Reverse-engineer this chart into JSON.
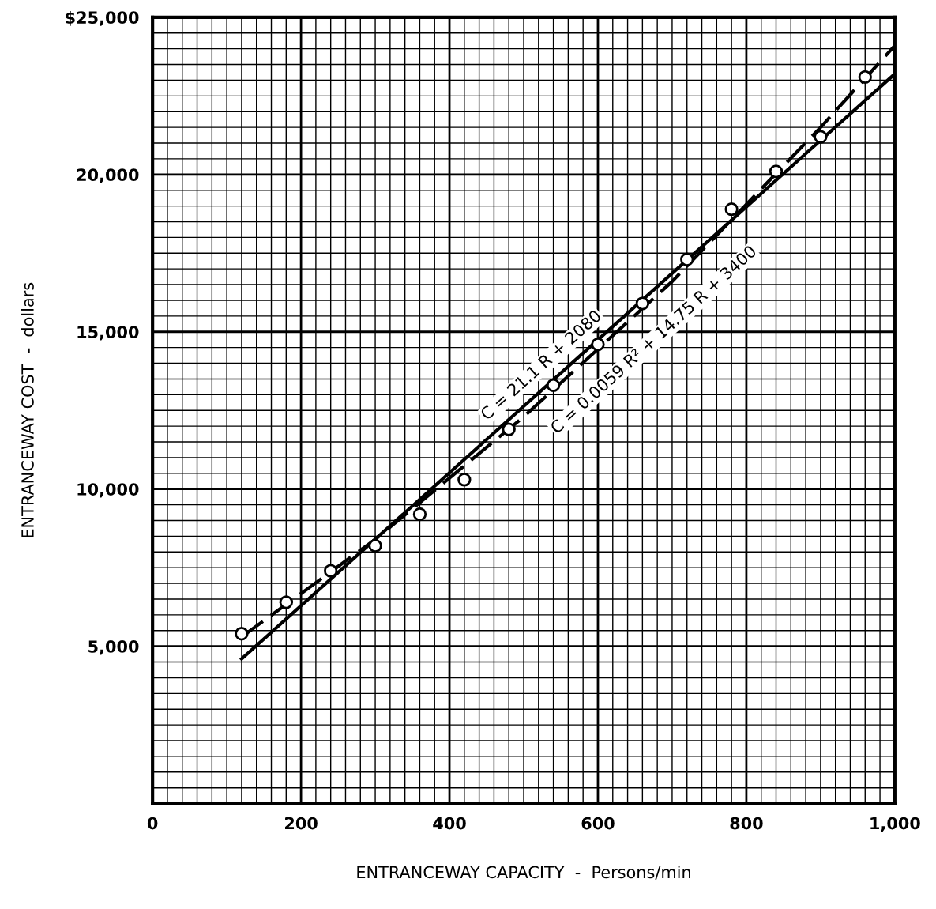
{
  "chart_data": {
    "type": "scatter",
    "xlabel": "ENTRANCEWAY CAPACITY  -  Persons/min",
    "ylabel": "ENTRANCEWAY COST  -  dollars",
    "series": [
      {
        "color": "#000000",
        "marker": "circle",
        "x": [
          120,
          180,
          240,
          300,
          360,
          420,
          480,
          540,
          600,
          660,
          720,
          780,
          840,
          900,
          960
        ],
        "values": [
          5400,
          6400,
          7400,
          8200,
          9200,
          10300,
          11900,
          13300,
          14600,
          15900,
          17300,
          18900,
          20100,
          21200,
          23100
        ]
      },
      {
        "type": "line",
        "color": "#000000",
        "line_style": "solid",
        "x": [
          120,
          1000
        ],
        "values": [
          4600,
          23200
        ]
      },
      {
        "type": "line",
        "color": "#000000",
        "line_style": "dashed",
        "x": [
          120,
          300,
          500,
          700,
          900,
          1000
        ],
        "values": [
          5300,
          8400,
          12300,
          16600,
          21500,
          24100
        ]
      }
    ],
    "annotations": [
      {
        "text": "C = 21.1 R + 2080",
        "x": 540,
        "y": 13500
      },
      {
        "text": "C = 0.0059 R² + 14.75 R + 3400",
        "x": 650,
        "y": 15400
      }
    ],
    "xlim": [
      0,
      1000
    ],
    "ylim": [
      0,
      25000
    ],
    "xticks": [
      {
        "value": 0,
        "label": "0"
      },
      {
        "value": 20,
        "label": null
      },
      {
        "value": 40,
        "label": null
      },
      {
        "value": 60,
        "label": null
      },
      {
        "value": 80,
        "label": null
      },
      {
        "value": 100,
        "label": null
      },
      {
        "value": 120,
        "label": null
      },
      {
        "value": 140,
        "label": null
      },
      {
        "value": 160,
        "label": null
      },
      {
        "value": 180,
        "label": null
      },
      {
        "value": 200,
        "label": "200"
      },
      {
        "value": 220,
        "label": null
      },
      {
        "value": 240,
        "label": null
      },
      {
        "value": 260,
        "label": null
      },
      {
        "value": 280,
        "label": null
      },
      {
        "value": 300,
        "label": null
      },
      {
        "value": 320,
        "label": null
      },
      {
        "value": 340,
        "label": null
      },
      {
        "value": 360,
        "label": null
      },
      {
        "value": 380,
        "label": null
      },
      {
        "value": 400,
        "label": "400"
      },
      {
        "value": 420,
        "label": null
      },
      {
        "value": 440,
        "label": null
      },
      {
        "value": 460,
        "label": null
      },
      {
        "value": 480,
        "label": null
      },
      {
        "value": 500,
        "label": null
      },
      {
        "value": 520,
        "label": null
      },
      {
        "value": 540,
        "label": null
      },
      {
        "value": 560,
        "label": null
      },
      {
        "value": 580,
        "label": null
      },
      {
        "value": 600,
        "label": "600"
      },
      {
        "value": 620,
        "label": null
      },
      {
        "value": 640,
        "label": null
      },
      {
        "value": 660,
        "label": null
      },
      {
        "value": 680,
        "label": null
      },
      {
        "value": 700,
        "label": null
      },
      {
        "value": 720,
        "label": null
      },
      {
        "value": 740,
        "label": null
      },
      {
        "value": 760,
        "label": null
      },
      {
        "value": 780,
        "label": null
      },
      {
        "value": 800,
        "label": "800"
      },
      {
        "value": 820,
        "label": null
      },
      {
        "value": 840,
        "label": null
      },
      {
        "value": 860,
        "label": null
      },
      {
        "value": 880,
        "label": null
      },
      {
        "value": 900,
        "label": null
      },
      {
        "value": 920,
        "label": null
      },
      {
        "value": 940,
        "label": null
      },
      {
        "value": 960,
        "label": null
      },
      {
        "value": 980,
        "label": null
      },
      {
        "value": 1000,
        "label": "1,000"
      }
    ],
    "yticks": [
      {
        "value": 500,
        "label": null
      },
      {
        "value": 1000,
        "label": null
      },
      {
        "value": 1500,
        "label": null
      },
      {
        "value": 2000,
        "label": null
      },
      {
        "value": 2500,
        "label": null
      },
      {
        "value": 3000,
        "label": null
      },
      {
        "value": 3500,
        "label": null
      },
      {
        "value": 4000,
        "label": null
      },
      {
        "value": 4500,
        "label": null
      },
      {
        "value": 5000,
        "label": "5,000"
      },
      {
        "value": 5500,
        "label": null
      },
      {
        "value": 6000,
        "label": null
      },
      {
        "value": 6500,
        "label": null
      },
      {
        "value": 7000,
        "label": null
      },
      {
        "value": 7500,
        "label": null
      },
      {
        "value": 8000,
        "label": null
      },
      {
        "value": 8500,
        "label": null
      },
      {
        "value": 9000,
        "label": null
      },
      {
        "value": 9500,
        "label": null
      },
      {
        "value": 10000,
        "label": "10,000"
      },
      {
        "value": 10500,
        "label": null
      },
      {
        "value": 11000,
        "label": null
      },
      {
        "value": 11500,
        "label": null
      },
      {
        "value": 12000,
        "label": null
      },
      {
        "value": 12500,
        "label": null
      },
      {
        "value": 13000,
        "label": null
      },
      {
        "value": 13500,
        "label": null
      },
      {
        "value": 14000,
        "label": null
      },
      {
        "value": 14500,
        "label": null
      },
      {
        "value": 15000,
        "label": "15,000"
      },
      {
        "value": 15500,
        "label": null
      },
      {
        "value": 16000,
        "label": null
      },
      {
        "value": 16500,
        "label": null
      },
      {
        "value": 17000,
        "label": null
      },
      {
        "value": 17500,
        "label": null
      },
      {
        "value": 18000,
        "label": null
      },
      {
        "value": 18500,
        "label": null
      },
      {
        "value": 19000,
        "label": null
      },
      {
        "value": 19500,
        "label": null
      },
      {
        "value": 20000,
        "label": "20,000"
      },
      {
        "value": 20500,
        "label": null
      },
      {
        "value": 21000,
        "label": null
      },
      {
        "value": 21500,
        "label": null
      },
      {
        "value": 22000,
        "label": null
      },
      {
        "value": 22500,
        "label": null
      },
      {
        "value": 23000,
        "label": null
      },
      {
        "value": 23500,
        "label": null
      },
      {
        "value": 24000,
        "label": null
      },
      {
        "value": 24500,
        "label": null
      },
      {
        "value": 25000,
        "label": "$25,000"
      }
    ],
    "grid": true
  }
}
